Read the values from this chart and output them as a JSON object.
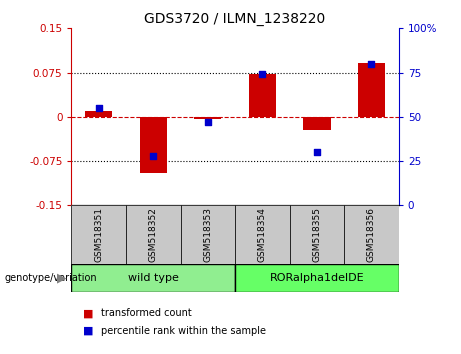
{
  "title": "GDS3720 / ILMN_1238220",
  "samples": [
    "GSM518351",
    "GSM518352",
    "GSM518353",
    "GSM518354",
    "GSM518355",
    "GSM518356"
  ],
  "red_bars": [
    0.01,
    -0.096,
    -0.004,
    0.073,
    -0.022,
    0.092
  ],
  "blue_squares": [
    55,
    28,
    47,
    74,
    30,
    80
  ],
  "ylim_left": [
    -0.15,
    0.15
  ],
  "ylim_right": [
    0,
    100
  ],
  "yticks_left": [
    -0.15,
    -0.075,
    0,
    0.075,
    0.15
  ],
  "yticks_right": [
    0,
    25,
    50,
    75,
    100
  ],
  "red_color": "#CC0000",
  "blue_color": "#0000CC",
  "hline_color": "#CC0000",
  "dotted_line_color": "#000000",
  "bg_plot": "#FFFFFF",
  "bg_xlabel": "#C8C8C8",
  "bg_group_wt": "#90EE90",
  "bg_group_ror": "#66FF66",
  "legend_red_label": "transformed count",
  "legend_blue_label": "percentile rank within the sample",
  "genotype_label": "genotype/variation",
  "bar_width": 0.5,
  "blue_sq_size": 25,
  "wt_label": "wild type",
  "ror_label": "RORalpha1delDE"
}
